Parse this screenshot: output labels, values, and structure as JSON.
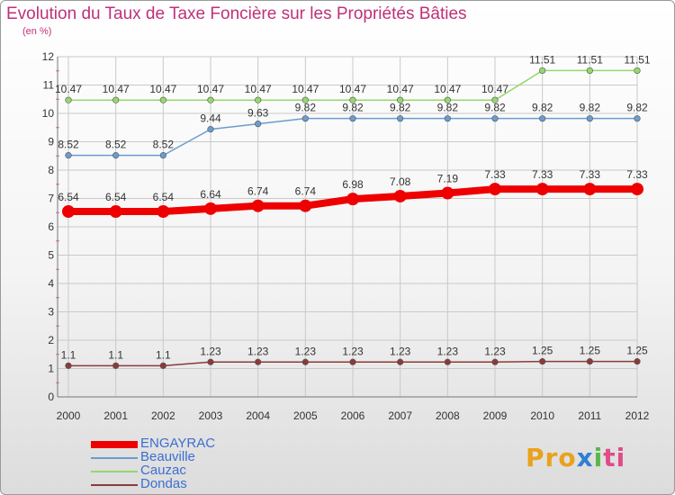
{
  "chart_data": {
    "type": "line",
    "title": "Evolution du Taux de Taxe Foncière sur les Propriétés Bâties",
    "subtitle": "(en %)",
    "x": [
      "2000",
      "2001",
      "2002",
      "2003",
      "2004",
      "2005",
      "2006",
      "2007",
      "2008",
      "2009",
      "2010",
      "2011",
      "2012"
    ],
    "ylim": [
      0,
      12
    ],
    "yticks": [
      "0",
      "1",
      "2",
      "3",
      "4",
      "5",
      "6",
      "7",
      "8",
      "9",
      "10",
      "11",
      "12"
    ],
    "series": [
      {
        "name": "ENGAYRAC",
        "color": "#ee0000",
        "values": [
          6.54,
          6.54,
          6.54,
          6.64,
          6.74,
          6.74,
          6.98,
          7.08,
          7.19,
          7.33,
          7.33,
          7.33,
          7.33
        ],
        "labels": [
          "6.54",
          "6.54",
          "6.54",
          "6.64",
          "6.74",
          "6.74",
          "6.98",
          "7.08",
          "7.19",
          "7.33",
          "7.33",
          "7.33",
          "7.33"
        ]
      },
      {
        "name": "Beauville",
        "color": "#6a9ccf",
        "values": [
          8.52,
          8.52,
          8.52,
          9.44,
          9.63,
          9.82,
          9.82,
          9.82,
          9.82,
          9.82,
          9.82,
          9.82,
          9.82
        ],
        "labels": [
          "8.52",
          "8.52",
          "8.52",
          "9.44",
          "9.63",
          "9.82",
          "9.82",
          "9.82",
          "9.82",
          "9.82",
          "9.82",
          "9.82",
          "9.82"
        ]
      },
      {
        "name": "Cauzac",
        "color": "#94d96e",
        "values": [
          10.47,
          10.47,
          10.47,
          10.47,
          10.47,
          10.47,
          10.47,
          10.47,
          10.47,
          10.47,
          11.51,
          11.51,
          11.51
        ],
        "labels": [
          "10.47",
          "10.47",
          "10.47",
          "10.47",
          "10.47",
          "10.47",
          "10.47",
          "10.47",
          "10.47",
          "10.47",
          "11.51",
          "11.51",
          "11.51"
        ]
      },
      {
        "name": "Dondas",
        "color": "#8b3a3a",
        "values": [
          1.1,
          1.1,
          1.1,
          1.23,
          1.23,
          1.23,
          1.23,
          1.23,
          1.23,
          1.23,
          1.25,
          1.25,
          1.25
        ],
        "labels": [
          "1.1",
          "1.1",
          "1.1",
          "1.23",
          "1.23",
          "1.23",
          "1.23",
          "1.23",
          "1.23",
          "1.23",
          "1.25",
          "1.25",
          "1.25"
        ]
      }
    ]
  },
  "logo": {
    "p1": "Pro",
    "p2": "x",
    "p3": "i",
    "p4": "ti"
  }
}
